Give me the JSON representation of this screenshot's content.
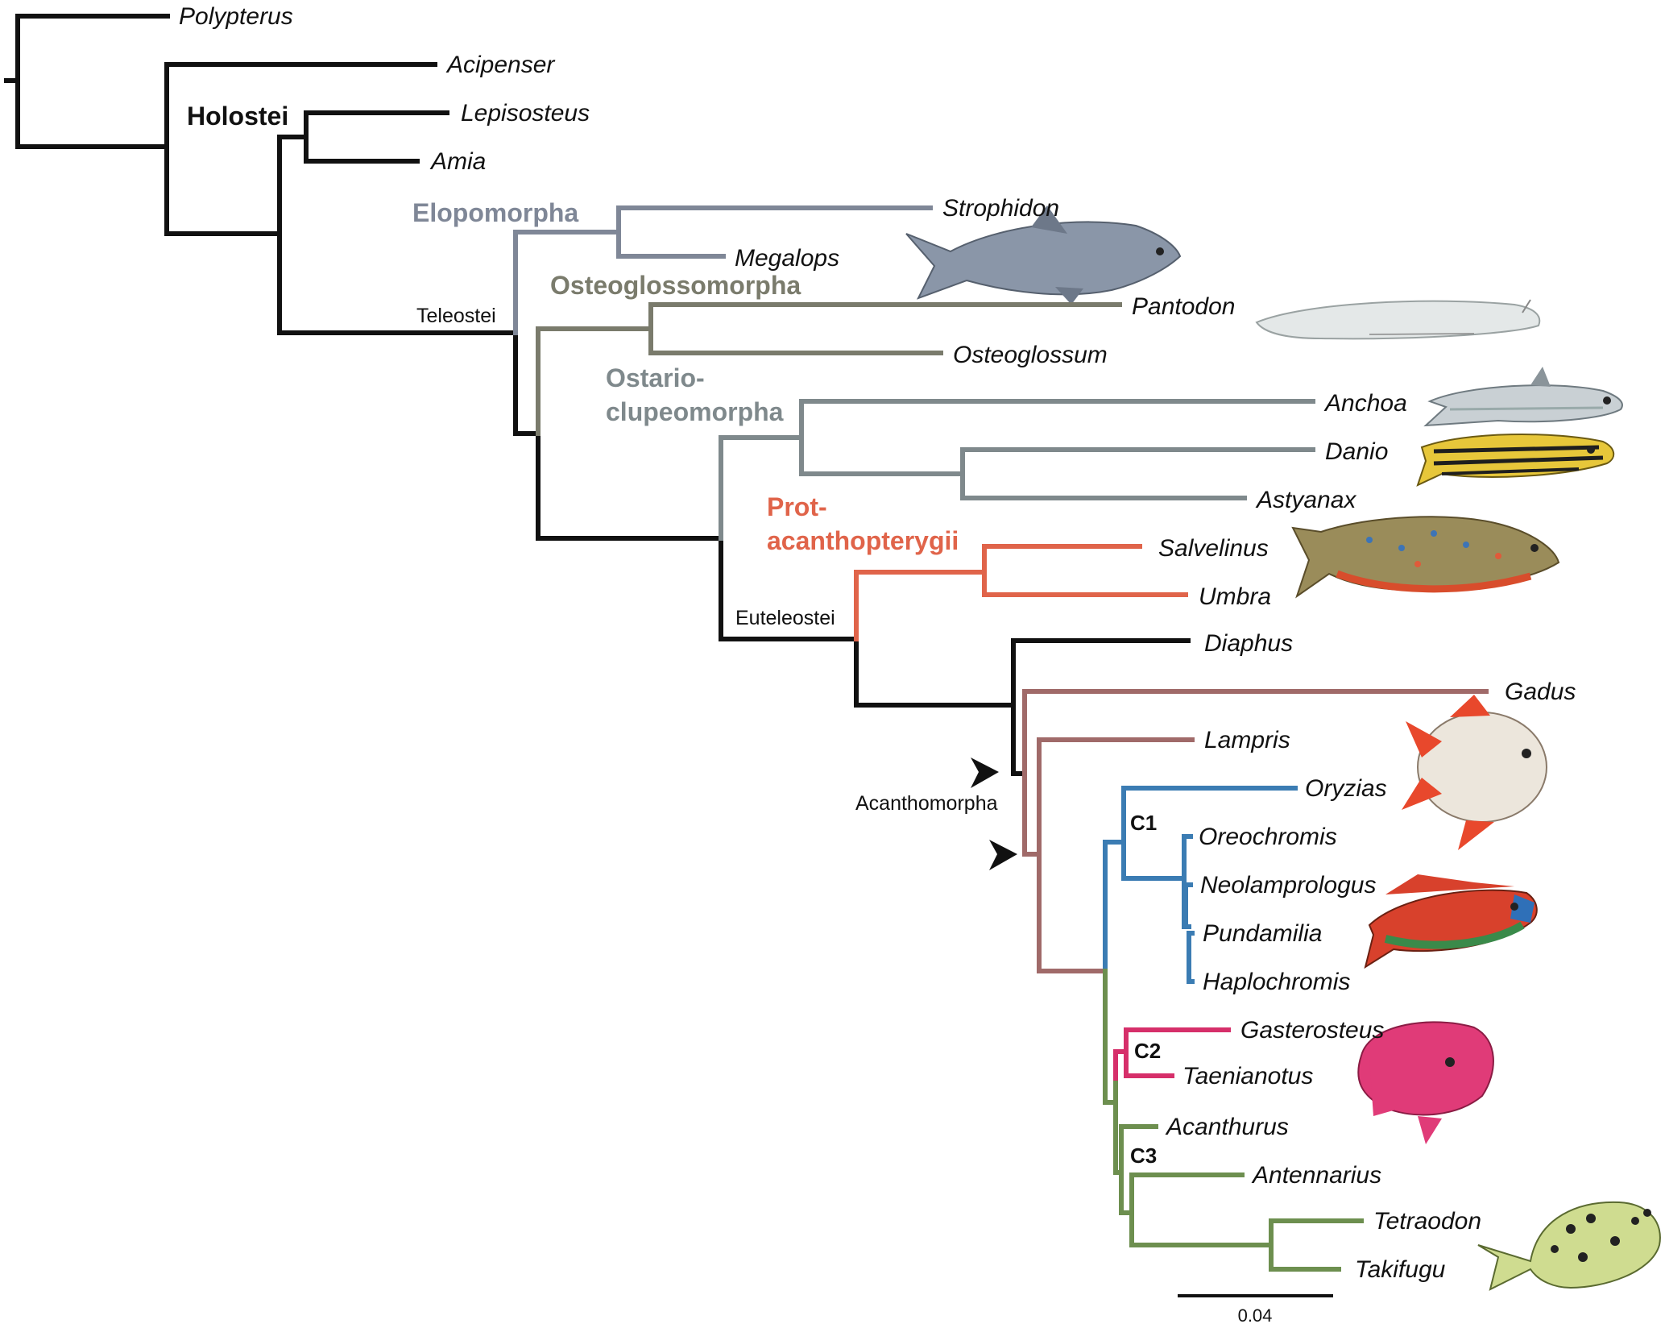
{
  "colors": {
    "black": "#111111",
    "elopomorpha": "#7f8797",
    "osteoglossomorpha": "#7a7b6c",
    "otocephala": "#7f898c",
    "protacanthopterygii": "#e0644a",
    "paracanthopterygii": "#a06a69",
    "c1": "#3b7cb3",
    "c2": "#d62f6a",
    "c3": "#6d8f4f"
  },
  "species": {
    "polypterus": "Polypterus",
    "acipenser": "Acipenser",
    "lepisosteus": "Lepisosteus",
    "amia": "Amia",
    "strophidon": "Strophidon",
    "megalops": "Megalops",
    "pantodon": "Pantodon",
    "osteoglossum": "Osteoglossum",
    "anchoa": "Anchoa",
    "danio": "Danio",
    "astyanax": "Astyanax",
    "salvelinus": "Salvelinus",
    "umbra": "Umbra",
    "diaphus": "Diaphus",
    "gadus": "Gadus",
    "lampris": "Lampris",
    "oryzias": "Oryzias",
    "oreochromis": "Oreochromis",
    "neolamprologus": "Neolamprologus",
    "pundamilia": "Pundamilia",
    "haplochromis": "Haplochromis",
    "gasterosteus": "Gasterosteus",
    "taenianotus": "Taenianotus",
    "acanthurus": "Acanthurus",
    "antennarius": "Antennarius",
    "tetraodon": "Tetraodon",
    "takifugu": "Takifugu"
  },
  "clades": {
    "holostei": "Holostei",
    "elopomorpha": "Elopomorpha",
    "osteoglossomorpha": "Osteoglossomorpha",
    "ostario_line1": "Ostario-",
    "ostario_line2": "clupeomorpha",
    "prot_line1": "Prot-",
    "prot_line2": "acanthopterygii"
  },
  "nodes": {
    "teleostei": "Teleostei",
    "euteleostei": "Euteleostei",
    "acanthomorpha": "Acanthomorpha"
  },
  "subclades": {
    "c1": "C1",
    "c2": "C2",
    "c3": "C3"
  },
  "scale_bar": {
    "value": "0.04"
  }
}
